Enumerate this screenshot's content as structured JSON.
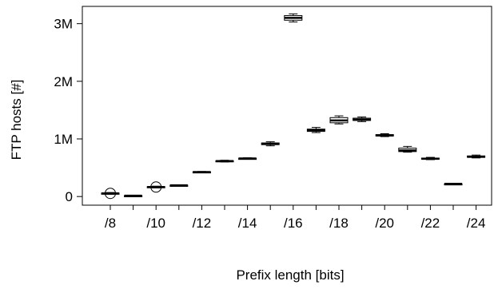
{
  "chart_data": {
    "type": "box",
    "xlabel": "Prefix length [bits]",
    "ylabel": "FTP hosts [#]",
    "categories": [
      "/8",
      "/9",
      "/10",
      "/11",
      "/12",
      "/13",
      "/14",
      "/15",
      "/16",
      "/17",
      "/18",
      "/19",
      "/20",
      "/21",
      "/22",
      "/23",
      "/24"
    ],
    "x_tick_labels": [
      "/8",
      "/10",
      "/12",
      "/14",
      "/16",
      "/18",
      "/20",
      "/22",
      "/24"
    ],
    "y_ticks": [
      {
        "value": 0,
        "label": "0"
      },
      {
        "value": 1000000,
        "label": "1M"
      },
      {
        "value": 2000000,
        "label": "2M"
      },
      {
        "value": 3000000,
        "label": "3M"
      }
    ],
    "ylim": [
      -150000,
      3300000
    ],
    "boxes": [
      {
        "category": "/8",
        "min": 40000,
        "q1": 50000,
        "median": 55000,
        "q3": 60000,
        "max": 70000,
        "outliers": [
          55000
        ]
      },
      {
        "category": "/9",
        "min": 10000,
        "q1": 12000,
        "median": 14000,
        "q3": 16000,
        "max": 18000,
        "outliers": []
      },
      {
        "category": "/10",
        "min": 150000,
        "q1": 158000,
        "median": 165000,
        "q3": 172000,
        "max": 180000,
        "outliers": [
          165000
        ]
      },
      {
        "category": "/11",
        "min": 190000,
        "q1": 193000,
        "median": 195000,
        "q3": 197000,
        "max": 200000,
        "outliers": []
      },
      {
        "category": "/12",
        "min": 415000,
        "q1": 420000,
        "median": 425000,
        "q3": 430000,
        "max": 435000,
        "outliers": []
      },
      {
        "category": "/13",
        "min": 600000,
        "q1": 608000,
        "median": 615000,
        "q3": 622000,
        "max": 630000,
        "outliers": []
      },
      {
        "category": "/14",
        "min": 650000,
        "q1": 655000,
        "median": 660000,
        "q3": 665000,
        "max": 672000,
        "outliers": []
      },
      {
        "category": "/15",
        "min": 880000,
        "q1": 900000,
        "median": 915000,
        "q3": 930000,
        "max": 950000,
        "outliers": []
      },
      {
        "category": "/16",
        "min": 3030000,
        "q1": 3060000,
        "median": 3100000,
        "q3": 3140000,
        "max": 3170000,
        "outliers": []
      },
      {
        "category": "/17",
        "min": 1110000,
        "q1": 1130000,
        "median": 1150000,
        "q3": 1170000,
        "max": 1200000,
        "outliers": []
      },
      {
        "category": "/18",
        "min": 1260000,
        "q1": 1280000,
        "median": 1320000,
        "q3": 1370000,
        "max": 1400000,
        "outliers": []
      },
      {
        "category": "/19",
        "min": 1300000,
        "q1": 1320000,
        "median": 1335000,
        "q3": 1360000,
        "max": 1380000,
        "outliers": []
      },
      {
        "category": "/20",
        "min": 1040000,
        "q1": 1050000,
        "median": 1060000,
        "q3": 1075000,
        "max": 1090000,
        "outliers": []
      },
      {
        "category": "/21",
        "min": 770000,
        "q1": 780000,
        "median": 800000,
        "q3": 840000,
        "max": 870000,
        "outliers": []
      },
      {
        "category": "/22",
        "min": 640000,
        "q1": 648000,
        "median": 655000,
        "q3": 668000,
        "max": 680000,
        "outliers": []
      },
      {
        "category": "/23",
        "min": 215000,
        "q1": 218000,
        "median": 220000,
        "q3": 222000,
        "max": 225000,
        "outliers": []
      },
      {
        "category": "/24",
        "min": 670000,
        "q1": 680000,
        "median": 690000,
        "q3": 705000,
        "max": 720000,
        "outliers": []
      }
    ],
    "colors": {
      "stroke": "#000000",
      "box_fill": "#ffffff"
    },
    "grid": false,
    "legend": "none"
  }
}
